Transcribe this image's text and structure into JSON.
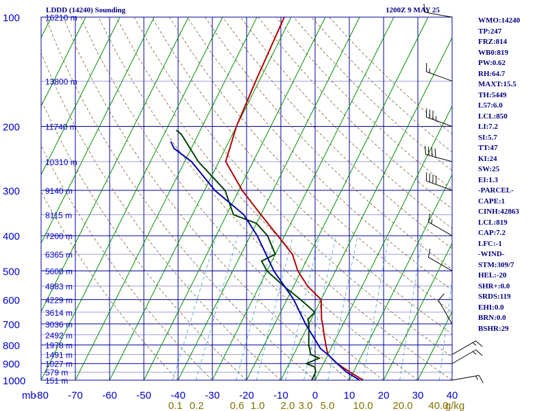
{
  "header": {
    "station_title": "LDDD (14240) Sounding",
    "time_label": "1200Z  9 MAY 25"
  },
  "indices": [
    "WMO:14240",
    "TP:247",
    "FRZ:814",
    "WB0:819",
    "PW:0.62",
    "RH:64.7",
    "MAXT:15.5",
    "TH:5449",
    "L57:6.0",
    "LCL:850",
    "LI:7.2",
    "SI:5.7",
    "TT:47",
    "KI:24",
    "SW:25",
    "EI:1.3",
    "-PARCEL-",
    "CAPE:1",
    "CINH:42863",
    "LCL:819",
    "CAP:7.2",
    "LFC:-1",
    "-WIND-",
    "STM:309/7",
    "HEL:-20",
    "SHR+:0.0",
    "SRDS:119",
    "EHI:0.0",
    "BRN:0.0",
    "BSHR:29"
  ],
  "chart_data": {
    "type": "line",
    "subtype": "skew-T log-P sounding",
    "y_unit_label": "mb",
    "pressure_ticks": [
      100,
      200,
      300,
      400,
      500,
      600,
      700,
      800,
      900,
      1000
    ],
    "temp_ticks": [
      -80,
      -70,
      -60,
      -50,
      -40,
      -30,
      -20,
      -10,
      0,
      10,
      20,
      30,
      40
    ],
    "xlim": [
      -80,
      40
    ],
    "ylim": [
      1000,
      100
    ],
    "mixing_ratio_labels": [
      "0.1",
      "0.2",
      "0.6",
      "1.0",
      "2.0",
      "3.0",
      "5.0",
      "10.0",
      "20.0",
      "40.0",
      "g/kg"
    ],
    "height_labels": [
      {
        "p": 100,
        "label": "16210 m"
      },
      {
        "p": 150,
        "label": "13800 m"
      },
      {
        "p": 200,
        "label": "11740 m"
      },
      {
        "p": 250,
        "label": "10310 m"
      },
      {
        "p": 300,
        "label": "9140 m"
      },
      {
        "p": 350,
        "label": "8115 m"
      },
      {
        "p": 400,
        "label": "7200 m"
      },
      {
        "p": 450,
        "label": "6365 m"
      },
      {
        "p": 500,
        "label": "5600 m"
      },
      {
        "p": 550,
        "label": "4883 m"
      },
      {
        "p": 600,
        "label": "4229 m"
      },
      {
        "p": 650,
        "label": "3614 m"
      },
      {
        "p": 700,
        "label": "3036 m"
      },
      {
        "p": 750,
        "label": "2492 m"
      },
      {
        "p": 800,
        "label": "1978 m"
      },
      {
        "p": 850,
        "label": "1491 m"
      },
      {
        "p": 900,
        "label": "1027 m"
      },
      {
        "p": 950,
        "label": "579 m"
      },
      {
        "p": 1000,
        "label": "151 m"
      }
    ],
    "series": [
      {
        "name": "temperature",
        "color": "#b00000",
        "points": [
          [
            1000,
            14
          ],
          [
            950,
            9
          ],
          [
            900,
            4
          ],
          [
            850,
            0
          ],
          [
            800,
            -2
          ],
          [
            750,
            -4
          ],
          [
            700,
            -6
          ],
          [
            680,
            -7
          ],
          [
            600,
            -10
          ],
          [
            550,
            -16
          ],
          [
            500,
            -21
          ],
          [
            450,
            -25
          ],
          [
            400,
            -32
          ],
          [
            350,
            -40
          ],
          [
            300,
            -49
          ],
          [
            250,
            -58
          ],
          [
            200,
            -60
          ],
          [
            150,
            -61
          ],
          [
            100,
            -62
          ]
        ]
      },
      {
        "name": "dewpoint",
        "color": "#004000",
        "points": [
          [
            1000,
            -1
          ],
          [
            950,
            -1
          ],
          [
            920,
            -2
          ],
          [
            900,
            -5
          ],
          [
            870,
            -2
          ],
          [
            850,
            -5
          ],
          [
            800,
            -7
          ],
          [
            700,
            -10
          ],
          [
            680,
            -11
          ],
          [
            650,
            -10
          ],
          [
            600,
            -16
          ],
          [
            550,
            -23
          ],
          [
            500,
            -30
          ],
          [
            470,
            -33
          ],
          [
            450,
            -30
          ],
          [
            400,
            -35
          ],
          [
            370,
            -40
          ],
          [
            350,
            -48
          ],
          [
            300,
            -54
          ],
          [
            250,
            -66
          ],
          [
            210,
            -75
          ],
          [
            205,
            -77
          ]
        ]
      },
      {
        "name": "parcel",
        "color": "#0000a8",
        "points": [
          [
            1000,
            13
          ],
          [
            950,
            8
          ],
          [
            900,
            4
          ],
          [
            850,
            0
          ],
          [
            819,
            -3
          ],
          [
            700,
            -11
          ],
          [
            600,
            -18
          ],
          [
            500,
            -28
          ],
          [
            400,
            -38
          ],
          [
            350,
            -45
          ],
          [
            300,
            -57
          ],
          [
            250,
            -68
          ],
          [
            230,
            -75
          ],
          [
            220,
            -77
          ]
        ]
      }
    ],
    "wind_barbs": [
      {
        "p": 100,
        "dir": 280,
        "kt": 10
      },
      {
        "p": 150,
        "dir": 290,
        "kt": 15
      },
      {
        "p": 200,
        "dir": 290,
        "kt": 35
      },
      {
        "p": 250,
        "dir": 285,
        "kt": 40
      },
      {
        "p": 300,
        "dir": 290,
        "kt": 40
      },
      {
        "p": 400,
        "dir": 300,
        "kt": 15
      },
      {
        "p": 500,
        "dir": 300,
        "kt": 10
      },
      {
        "p": 700,
        "dir": 330,
        "kt": 10
      },
      {
        "p": 850,
        "dir": 60,
        "kt": 15
      },
      {
        "p": 900,
        "dir": 60,
        "kt": 15
      },
      {
        "p": 1000,
        "dir": 80,
        "kt": 15
      }
    ]
  }
}
